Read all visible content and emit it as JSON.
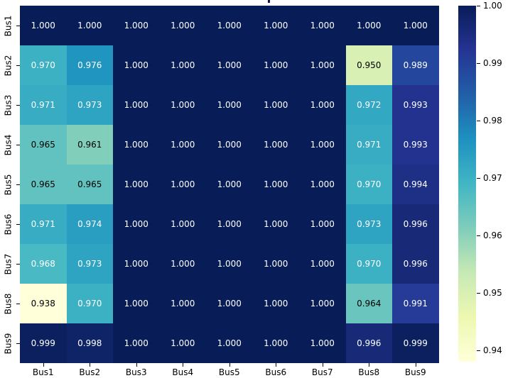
{
  "chart_data": {
    "type": "heatmap",
    "title": "",
    "x_labels": [
      "Bus1",
      "Bus2",
      "Bus3",
      "Bus4",
      "Bus5",
      "Bus6",
      "Bus7",
      "Bus8",
      "Bus9"
    ],
    "y_labels": [
      "Bus1",
      "Bus2",
      "Bus3",
      "Bus4",
      "Bus5",
      "Bus6",
      "Bus7",
      "Bus8",
      "Bus9"
    ],
    "values": [
      [
        1.0,
        1.0,
        1.0,
        1.0,
        1.0,
        1.0,
        1.0,
        1.0,
        1.0
      ],
      [
        0.97,
        0.976,
        1.0,
        1.0,
        1.0,
        1.0,
        1.0,
        0.95,
        0.989
      ],
      [
        0.971,
        0.973,
        1.0,
        1.0,
        1.0,
        1.0,
        1.0,
        0.972,
        0.993
      ],
      [
        0.965,
        0.961,
        1.0,
        1.0,
        1.0,
        1.0,
        1.0,
        0.971,
        0.993
      ],
      [
        0.965,
        0.965,
        1.0,
        1.0,
        1.0,
        1.0,
        1.0,
        0.97,
        0.994
      ],
      [
        0.971,
        0.974,
        1.0,
        1.0,
        1.0,
        1.0,
        1.0,
        0.973,
        0.996
      ],
      [
        0.968,
        0.973,
        1.0,
        1.0,
        1.0,
        1.0,
        1.0,
        0.97,
        0.996
      ],
      [
        0.938,
        0.97,
        1.0,
        1.0,
        1.0,
        1.0,
        1.0,
        0.964,
        0.991
      ],
      [
        0.999,
        0.998,
        1.0,
        1.0,
        1.0,
        1.0,
        1.0,
        0.996,
        0.999
      ]
    ],
    "value_decimals": 3,
    "vmin": 0.938,
    "vmax": 1.0,
    "grid": false,
    "legend_position": "right-colorbar",
    "colormap": {
      "name": "YlGnBu",
      "anchors_low_to_high": [
        "#ffffd9",
        "#edf8b1",
        "#c7e9b4",
        "#7fcdbb",
        "#41b6c4",
        "#1d91c0",
        "#225ea8",
        "#253494",
        "#081d58"
      ]
    },
    "annot_colors": {
      "light": "#ffffff",
      "dark": "#000000"
    },
    "text_luminance_threshold": 0.408,
    "colorbar": {
      "tick_values": [
        1.0,
        0.99,
        0.98,
        0.97,
        0.96,
        0.95,
        0.94
      ],
      "tick_labels": [
        "1.00",
        "0.99",
        "0.98",
        "0.97",
        "0.96",
        "0.95",
        "0.94"
      ]
    }
  }
}
